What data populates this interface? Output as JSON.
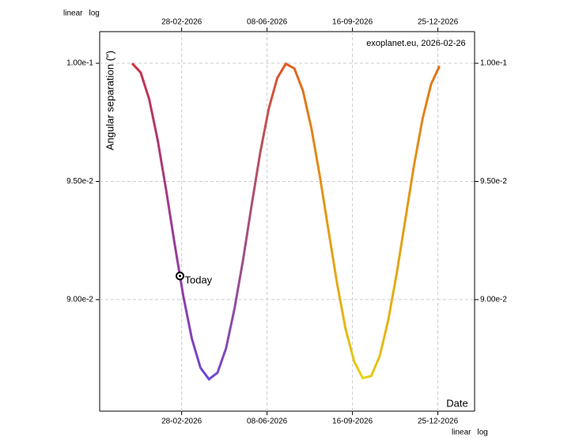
{
  "chart_data": {
    "type": "line",
    "y_label": "Angular separation (\")",
    "x_label": "Date",
    "annotation": "exoplanet.eu, 2026-02-26",
    "scale_options": [
      "linear",
      "log"
    ],
    "active_scale": "linear",
    "x": [
      "01-01-2026",
      "11-01-2026",
      "21-01-2026",
      "31-01-2026",
      "10-02-2026",
      "20-02-2026",
      "02-03-2026",
      "12-03-2026",
      "22-03-2026",
      "01-04-2026",
      "11-04-2026",
      "21-04-2026",
      "01-05-2026",
      "11-05-2026",
      "21-05-2026",
      "31-05-2026",
      "10-06-2026",
      "20-06-2026",
      "30-06-2026",
      "10-07-2026",
      "20-07-2026",
      "30-07-2026",
      "09-08-2026",
      "19-08-2026",
      "29-08-2026",
      "08-09-2026",
      "18-09-2026",
      "28-09-2026",
      "08-10-2026",
      "18-10-2026",
      "28-10-2026",
      "07-11-2026",
      "17-11-2026",
      "27-11-2026",
      "07-12-2026",
      "17-12-2026",
      "27-12-2026"
    ],
    "series": [
      {
        "gradient": [
          "#d2303c",
          "#6a46e0",
          "#e0571e",
          "#e6d412",
          "#e0701c"
        ],
        "values": [
          0.1,
          0.09961,
          0.09848,
          0.09674,
          0.0946,
          0.09231,
          0.09014,
          0.08834,
          0.08712,
          0.08663,
          0.08691,
          0.08794,
          0.08964,
          0.0917,
          0.09401,
          0.09622,
          0.09808,
          0.09938,
          0.09998,
          0.09978,
          0.09884,
          0.09724,
          0.09518,
          0.09291,
          0.09068,
          0.08875,
          0.08738,
          0.08668,
          0.08677,
          0.08762,
          0.08915,
          0.09115,
          0.09341,
          0.09567,
          0.09764,
          0.09911,
          0.09989
        ]
      }
    ],
    "marker": {
      "label": "Today",
      "x": "26-02-2026",
      "value": 0.091
    },
    "xlim": [
      "24-11-2025",
      "06-02-2027"
    ],
    "xticks": [
      "28-02-2026",
      "08-06-2026",
      "16-09-2026",
      "25-12-2026"
    ],
    "ylim": [
      0.08528,
      0.10134
    ],
    "yticks": [
      {
        "value": 0.09,
        "label": "9.00e-2"
      },
      {
        "value": 0.095,
        "label": "9.50e-2"
      },
      {
        "value": 0.1,
        "label": "1.00e-1"
      }
    ],
    "grid": true
  }
}
